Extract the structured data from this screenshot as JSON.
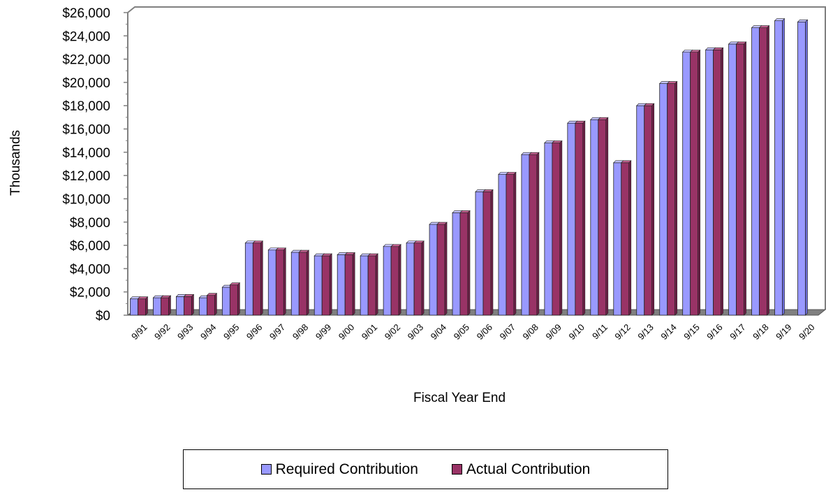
{
  "chart_data": {
    "type": "bar",
    "title": "",
    "xlabel": "Fiscal Year End",
    "ylabel": "Thousands",
    "ylim": [
      0,
      26000
    ],
    "yticks": [
      "$0",
      "$2,000",
      "$4,000",
      "$6,000",
      "$8,000",
      "$10,000",
      "$12,000",
      "$14,000",
      "$16,000",
      "$18,000",
      "$20,000",
      "$22,000",
      "$24,000",
      "$26,000"
    ],
    "categories": [
      "9/91",
      "9/92",
      "9/93",
      "9/94",
      "9/95",
      "9/96",
      "9/97",
      "9/98",
      "9/99",
      "9/00",
      "9/01",
      "9/02",
      "9/03",
      "9/04",
      "9/05",
      "9/06",
      "9/07",
      "9/08",
      "9/09",
      "9/10",
      "9/11",
      "9/12",
      "9/13",
      "9/14",
      "9/15",
      "9/16",
      "9/17",
      "9/18",
      "9/19",
      "9/20"
    ],
    "series": [
      {
        "name": "Required Contribution",
        "color": "#9999ff",
        "values": [
          1400,
          1500,
          1600,
          1500,
          2400,
          6200,
          5600,
          5400,
          5100,
          5200,
          5100,
          5900,
          6200,
          7800,
          8800,
          10600,
          12100,
          13800,
          14800,
          16500,
          16800,
          13100,
          18000,
          19900,
          22600,
          22800,
          23300,
          24700,
          25300,
          25200
        ]
      },
      {
        "name": "Actual Contribution",
        "color": "#993366",
        "values": [
          1400,
          1500,
          1600,
          1700,
          2600,
          6200,
          5600,
          5400,
          5100,
          5200,
          5100,
          5900,
          6200,
          7800,
          8800,
          10600,
          12100,
          13800,
          14800,
          16500,
          16800,
          13100,
          18000,
          19900,
          22600,
          22800,
          23300,
          24700,
          null,
          null
        ]
      }
    ],
    "legend_position": "bottom",
    "grid": false
  }
}
